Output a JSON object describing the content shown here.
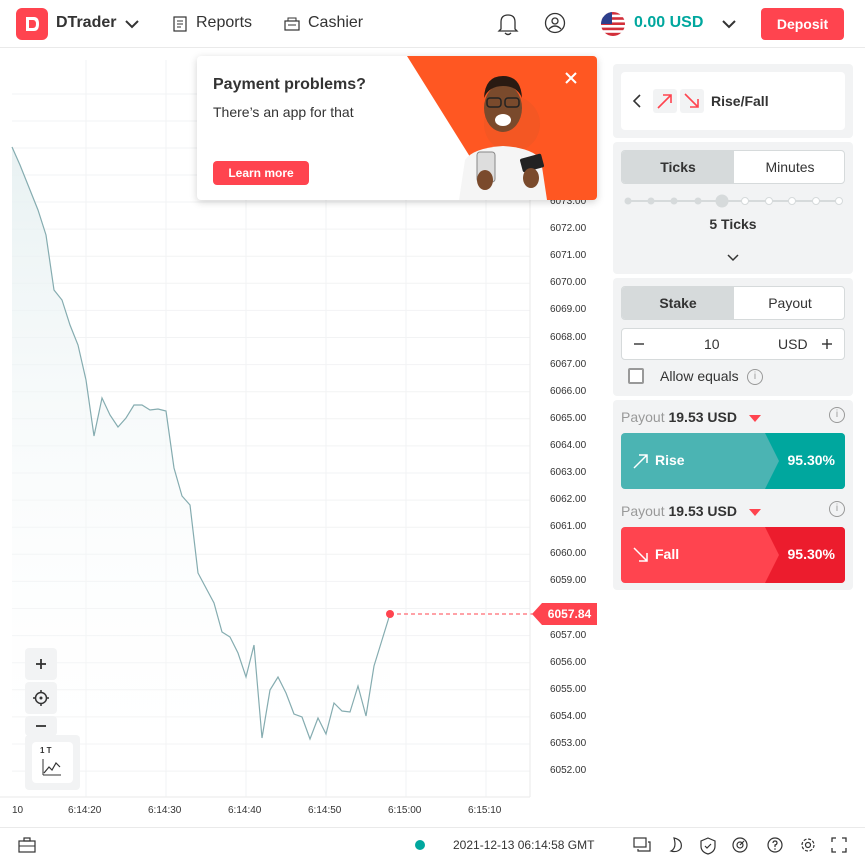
{
  "header": {
    "brand": "DTrader",
    "nav_reports": "Reports",
    "nav_cashier": "Cashier",
    "balance": "0.00 USD",
    "deposit_label": "Deposit",
    "icons": [
      "bell-icon",
      "account-icon",
      "us-flag-icon",
      "chevron-down-icon"
    ]
  },
  "promo": {
    "title": "Payment problems?",
    "subtitle": "There’s an app for that",
    "button": "Learn more"
  },
  "chart": {
    "current_price": "6057.84",
    "price_labels": [
      "6073.00",
      "6072.00",
      "6071.00",
      "6070.00",
      "6069.00",
      "6068.00",
      "6067.00",
      "6066.00",
      "6065.00",
      "6064.00",
      "6063.00",
      "6062.00",
      "6061.00",
      "6060.00",
      "6059.00",
      "6058.00",
      "6057.00",
      "6056.00",
      "6055.00",
      "6054.00",
      "6053.00",
      "6052.00"
    ],
    "time_labels": [
      "10",
      "6:14:20",
      "6:14:30",
      "6:14:40",
      "6:14:50",
      "6:15:00",
      "6:15:10"
    ],
    "timeframe": "1 T",
    "line_color": "#85acb0",
    "accent_red": "#ff444f"
  },
  "trade": {
    "trade_type": "Rise/Fall",
    "duration_tabs": [
      "Ticks",
      "Minutes"
    ],
    "ticks_label": "5 Ticks",
    "stake_tabs": [
      "Stake",
      "Payout"
    ],
    "stake_value": "10",
    "stake_currency": "USD",
    "allow_equals": "Allow equals",
    "payout_label": "Payout",
    "rise": {
      "payout": "19.53 USD",
      "label": "Rise",
      "percent": "95.30%",
      "color": "#4bb4b3"
    },
    "fall": {
      "payout": "19.53 USD",
      "label": "Fall",
      "percent": "95.30%",
      "color": "#ec3f3f"
    }
  },
  "footer": {
    "datetime": "2021-12-13 06:14:58 GMT"
  }
}
